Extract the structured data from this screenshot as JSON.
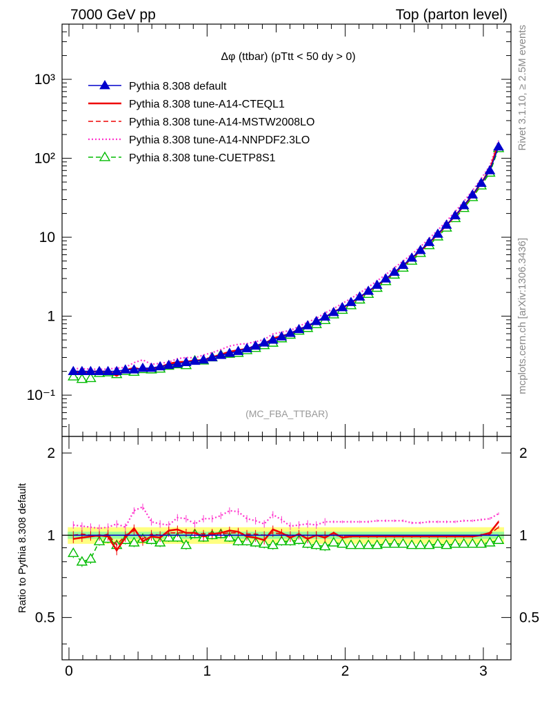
{
  "header": {
    "left": "7000 GeV pp",
    "right": "Top (parton level)"
  },
  "side_labels": {
    "rivet": "Rivet 3.1.10, ≥ 2.5M events",
    "mcplots": "mcplots.cern.ch [arXiv:1306.3436]"
  },
  "chart_data": {
    "type": "line",
    "title": "Δφ (ttbar) (pTtt < 50 dy > 0)",
    "watermark": "(MC_FBA_TTBAR)",
    "legend_position": "top-left",
    "x": [
      0.0314,
      0.0942,
      0.157,
      0.2199,
      0.2827,
      0.3456,
      0.4084,
      0.4712,
      0.5341,
      0.5969,
      0.6597,
      0.7226,
      0.7854,
      0.8482,
      0.9111,
      0.9739,
      1.0367,
      1.0996,
      1.1624,
      1.2252,
      1.2881,
      1.3509,
      1.4137,
      1.4765,
      1.5394,
      1.6022,
      1.665,
      1.7279,
      1.7907,
      1.8535,
      1.9164,
      1.9792,
      2.042,
      2.1049,
      2.1677,
      2.2305,
      2.2934,
      2.3562,
      2.419,
      2.4819,
      2.5447,
      2.6075,
      2.6704,
      2.7332,
      2.796,
      2.8588,
      2.9217,
      2.9845,
      3.0473,
      3.1102
    ],
    "top_panel": {
      "yscale": "log",
      "ylim": [
        0.03,
        5000
      ],
      "xlim": [
        -0.05,
        3.2
      ],
      "y_tick_labels": [
        "10⁻¹",
        "1",
        "10",
        "10²",
        "10³"
      ],
      "x_tick_labels": [
        "0",
        "1",
        "2",
        "3"
      ]
    },
    "ratio_panel": {
      "ylabel": "Ratio to Pythia 8.308 default",
      "ylim": [
        0.35,
        2.3
      ],
      "y_tick_labels": [
        "0.5",
        "1",
        "2"
      ],
      "bands": {
        "inner_color": "#99ff99",
        "outer_color": "#ffff80",
        "inner_halfwidth": 0.03,
        "outer_halfwidth": 0.07
      }
    },
    "series": [
      {
        "name": "Pythia 8.308 default",
        "color": "#0000cc",
        "dash": "solid",
        "marker": "filled-triangle",
        "values": [
          0.2,
          0.2,
          0.2,
          0.2,
          0.2,
          0.2,
          0.21,
          0.21,
          0.22,
          0.22,
          0.23,
          0.24,
          0.25,
          0.26,
          0.27,
          0.28,
          0.3,
          0.32,
          0.34,
          0.36,
          0.39,
          0.42,
          0.46,
          0.5,
          0.55,
          0.61,
          0.68,
          0.76,
          0.86,
          0.98,
          1.12,
          1.29,
          1.5,
          1.76,
          2.08,
          2.48,
          2.98,
          3.62,
          4.43,
          5.47,
          6.83,
          8.62,
          11.0,
          14.3,
          18.8,
          25.2,
          34.5,
          48.5,
          70.0,
          140.0
        ],
        "ratio": [
          1,
          1,
          1,
          1,
          1,
          1,
          1,
          1,
          1,
          1,
          1,
          1,
          1,
          1,
          1,
          1,
          1,
          1,
          1,
          1,
          1,
          1,
          1,
          1,
          1,
          1,
          1,
          1,
          1,
          1,
          1,
          1,
          1,
          1,
          1,
          1,
          1,
          1,
          1,
          1,
          1,
          1,
          1,
          1,
          1,
          1,
          1,
          1,
          1,
          1
        ]
      },
      {
        "name": "Pythia 8.308 tune-A14-CTEQL1",
        "color": "#ee0000",
        "dash": "solid",
        "marker": "none",
        "values": [
          0.194,
          0.196,
          0.198,
          0.2,
          0.198,
          0.176,
          0.206,
          0.222,
          0.209,
          0.217,
          0.225,
          0.25,
          0.262,
          0.265,
          0.275,
          0.277,
          0.302,
          0.326,
          0.354,
          0.371,
          0.386,
          0.41,
          0.442,
          0.523,
          0.561,
          0.598,
          0.689,
          0.737,
          0.86,
          0.96,
          1.14,
          1.27,
          1.48,
          1.74,
          2.06,
          2.46,
          2.95,
          3.58,
          4.38,
          5.42,
          6.76,
          8.55,
          10.9,
          14.2,
          18.7,
          25.0,
          34.3,
          48.3,
          71.4,
          157.0
        ],
        "ratio": [
          0.97,
          0.98,
          0.99,
          1.0,
          0.99,
          0.88,
          0.98,
          1.06,
          0.95,
          0.99,
          0.98,
          1.04,
          1.05,
          1.02,
          1.02,
          0.99,
          1.01,
          1.02,
          1.04,
          1.03,
          0.99,
          0.98,
          0.96,
          1.05,
          1.02,
          0.98,
          1.01,
          0.97,
          1.0,
          0.98,
          1.02,
          0.98,
          0.99,
          0.99,
          0.99,
          0.99,
          0.99,
          0.99,
          0.99,
          0.99,
          0.99,
          0.99,
          0.99,
          0.99,
          0.99,
          0.99,
          0.99,
          1.0,
          1.02,
          1.12
        ]
      },
      {
        "name": "Pythia 8.308 tune-A14-MSTW2008LO",
        "color": "#ee0000",
        "dash": "dashed",
        "marker": "none",
        "values": [
          0.2,
          0.202,
          0.2,
          0.198,
          0.202,
          0.184,
          0.21,
          0.218,
          0.213,
          0.222,
          0.23,
          0.245,
          0.255,
          0.265,
          0.276,
          0.283,
          0.306,
          0.323,
          0.347,
          0.367,
          0.394,
          0.424,
          0.46,
          0.51,
          0.555,
          0.61,
          0.68,
          0.76,
          0.86,
          0.98,
          1.12,
          1.28,
          1.49,
          1.75,
          2.07,
          2.47,
          2.97,
          3.6,
          4.41,
          5.44,
          6.8,
          8.58,
          10.95,
          14.2,
          18.7,
          25.1,
          34.4,
          48.4,
          70.5,
          150.0
        ],
        "ratio": [
          1.0,
          1.01,
          1.0,
          0.99,
          1.01,
          0.92,
          1.0,
          1.04,
          0.97,
          1.01,
          1.0,
          1.02,
          1.02,
          1.02,
          1.02,
          1.01,
          1.02,
          1.01,
          1.02,
          1.02,
          1.01,
          1.01,
          1.0,
          1.02,
          1.01,
          1.0,
          1.0,
          1.0,
          1.0,
          1.0,
          1.0,
          0.99,
          0.99,
          0.99,
          0.99,
          0.99,
          0.99,
          0.99,
          0.99,
          0.99,
          0.99,
          0.99,
          0.99,
          0.99,
          0.99,
          0.99,
          0.99,
          1.0,
          1.01,
          1.07
        ]
      },
      {
        "name": "Pythia 8.308 tune-A14-NNPDF2.3LO",
        "color": "#ff33cc",
        "dash": "dotted",
        "marker": "none",
        "values": [
          0.218,
          0.216,
          0.214,
          0.212,
          0.214,
          0.22,
          0.225,
          0.258,
          0.28,
          0.246,
          0.253,
          0.262,
          0.29,
          0.299,
          0.297,
          0.322,
          0.345,
          0.378,
          0.418,
          0.44,
          0.449,
          0.475,
          0.506,
          0.595,
          0.627,
          0.659,
          0.741,
          0.84,
          0.937,
          1.1,
          1.25,
          1.45,
          1.68,
          1.97,
          2.33,
          2.8,
          3.37,
          4.1,
          5.0,
          6.08,
          7.58,
          9.64,
          12.3,
          16.0,
          21.1,
          28.5,
          39.0,
          55.3,
          80.5,
          168.0
        ],
        "ratio": [
          1.09,
          1.08,
          1.07,
          1.06,
          1.07,
          1.1,
          1.07,
          1.23,
          1.27,
          1.12,
          1.1,
          1.09,
          1.16,
          1.15,
          1.1,
          1.15,
          1.15,
          1.18,
          1.23,
          1.22,
          1.15,
          1.13,
          1.1,
          1.19,
          1.14,
          1.08,
          1.09,
          1.1,
          1.09,
          1.12,
          1.12,
          1.12,
          1.12,
          1.12,
          1.12,
          1.13,
          1.13,
          1.13,
          1.13,
          1.11,
          1.11,
          1.12,
          1.12,
          1.12,
          1.12,
          1.13,
          1.13,
          1.14,
          1.15,
          1.2
        ]
      },
      {
        "name": "Pythia 8.308 tune-CUETP8S1",
        "color": "#00bb00",
        "dash": "dashed",
        "marker": "open-triangle",
        "values": [
          0.172,
          0.16,
          0.164,
          0.19,
          0.194,
          0.184,
          0.202,
          0.197,
          0.213,
          0.211,
          0.216,
          0.235,
          0.245,
          0.239,
          0.273,
          0.274,
          0.3,
          0.323,
          0.333,
          0.342,
          0.37,
          0.395,
          0.428,
          0.46,
          0.523,
          0.58,
          0.653,
          0.707,
          0.791,
          0.89,
          1.05,
          1.2,
          1.37,
          1.62,
          1.91,
          2.28,
          2.77,
          3.35,
          4.1,
          5.03,
          6.3,
          7.9,
          10.2,
          13.2,
          17.4,
          23.4,
          32.1,
          45.1,
          65.5,
          134.0
        ],
        "ratio": [
          0.86,
          0.8,
          0.82,
          0.95,
          0.97,
          0.92,
          0.96,
          0.94,
          0.97,
          0.96,
          0.94,
          0.98,
          0.98,
          0.92,
          1.01,
          0.98,
          1.0,
          1.01,
          0.98,
          0.95,
          0.95,
          0.94,
          0.93,
          0.92,
          0.95,
          0.95,
          0.96,
          0.93,
          0.92,
          0.91,
          0.94,
          0.93,
          0.92,
          0.92,
          0.92,
          0.92,
          0.93,
          0.93,
          0.93,
          0.92,
          0.92,
          0.92,
          0.93,
          0.92,
          0.93,
          0.93,
          0.93,
          0.93,
          0.94,
          0.96
        ]
      }
    ]
  }
}
